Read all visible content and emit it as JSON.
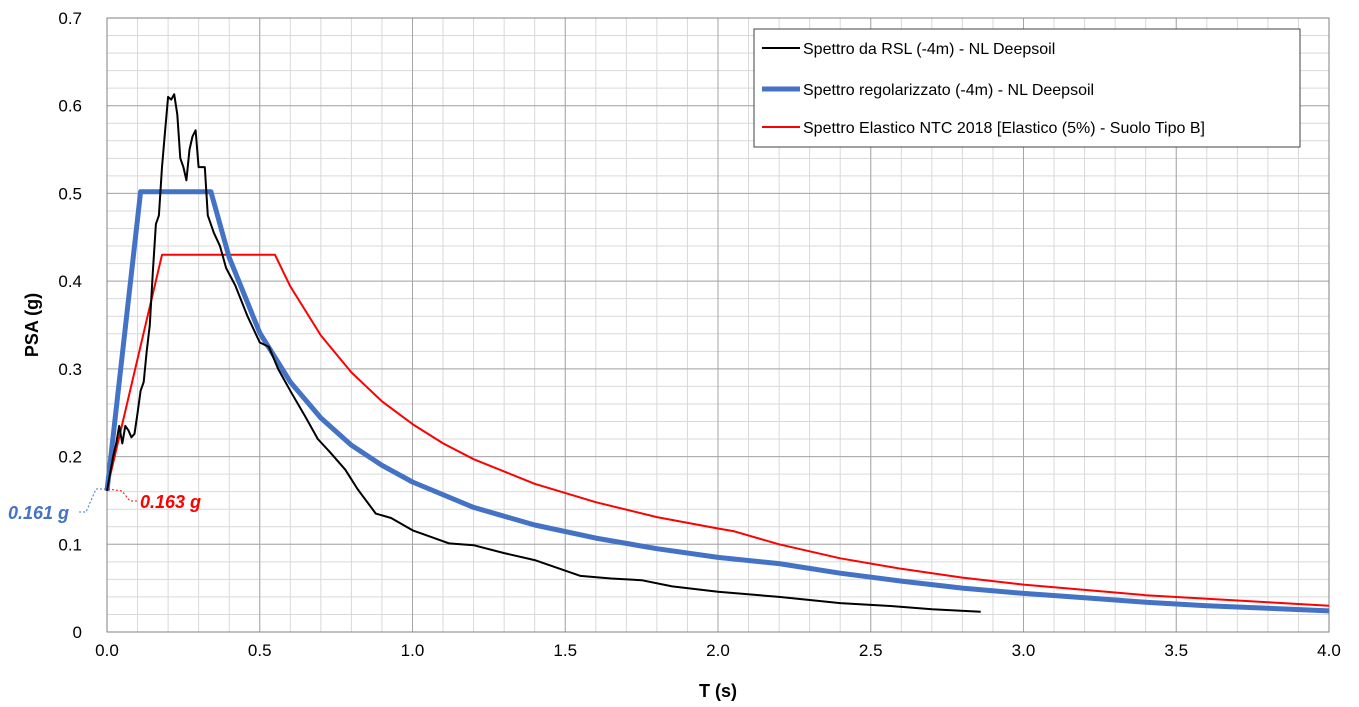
{
  "chart_data": {
    "type": "line",
    "xlabel": "T (s)",
    "ylabel": "PSA (g)",
    "xlim": [
      0,
      4
    ],
    "ylim": [
      0,
      0.7
    ],
    "x_ticks": [
      "0.0",
      "0.5",
      "1.0",
      "1.5",
      "2.0",
      "2.5",
      "3.0",
      "3.5",
      "4.0"
    ],
    "y_ticks": [
      "0",
      "0.1",
      "0.2",
      "0.3",
      "0.4",
      "0.5",
      "0.6",
      "0.7"
    ],
    "grid": true,
    "legend_position": "top-right",
    "series": [
      {
        "name": "Spettro da RSL (-4m) - NL Deepsoil",
        "color": "#000000",
        "points": [
          [
            0,
            0.161
          ],
          [
            0.02,
            0.2
          ],
          [
            0.03,
            0.215
          ],
          [
            0.04,
            0.235
          ],
          [
            0.05,
            0.215
          ],
          [
            0.06,
            0.235
          ],
          [
            0.07,
            0.23
          ],
          [
            0.08,
            0.222
          ],
          [
            0.09,
            0.226
          ],
          [
            0.1,
            0.25
          ],
          [
            0.11,
            0.275
          ],
          [
            0.12,
            0.285
          ],
          [
            0.13,
            0.32
          ],
          [
            0.14,
            0.35
          ],
          [
            0.15,
            0.41
          ],
          [
            0.16,
            0.465
          ],
          [
            0.17,
            0.475
          ],
          [
            0.18,
            0.53
          ],
          [
            0.19,
            0.57
          ],
          [
            0.2,
            0.61
          ],
          [
            0.21,
            0.607
          ],
          [
            0.22,
            0.613
          ],
          [
            0.23,
            0.59
          ],
          [
            0.24,
            0.54
          ],
          [
            0.25,
            0.53
          ],
          [
            0.26,
            0.515
          ],
          [
            0.27,
            0.55
          ],
          [
            0.28,
            0.565
          ],
          [
            0.29,
            0.572
          ],
          [
            0.3,
            0.53
          ],
          [
            0.32,
            0.53
          ],
          [
            0.33,
            0.475
          ],
          [
            0.35,
            0.455
          ],
          [
            0.37,
            0.44
          ],
          [
            0.39,
            0.415
          ],
          [
            0.42,
            0.395
          ],
          [
            0.46,
            0.36
          ],
          [
            0.5,
            0.33
          ],
          [
            0.53,
            0.325
          ],
          [
            0.56,
            0.3
          ],
          [
            0.6,
            0.275
          ],
          [
            0.65,
            0.245
          ],
          [
            0.69,
            0.22
          ],
          [
            0.73,
            0.205
          ],
          [
            0.78,
            0.185
          ],
          [
            0.82,
            0.163
          ],
          [
            0.88,
            0.135
          ],
          [
            0.93,
            0.13
          ],
          [
            1.0,
            0.116
          ],
          [
            1.12,
            0.101
          ],
          [
            1.2,
            0.099
          ],
          [
            1.3,
            0.09
          ],
          [
            1.4,
            0.082
          ],
          [
            1.55,
            0.064
          ],
          [
            1.65,
            0.061
          ],
          [
            1.75,
            0.059
          ],
          [
            1.85,
            0.052
          ],
          [
            2.0,
            0.046
          ],
          [
            2.2,
            0.04
          ],
          [
            2.4,
            0.033
          ],
          [
            2.55,
            0.03
          ],
          [
            2.7,
            0.026
          ],
          [
            2.86,
            0.023
          ]
        ]
      },
      {
        "name": "Spettro regolarizzato (-4m) - NL Deepsoil",
        "color": "#4472C4",
        "points": [
          [
            0,
            0.161
          ],
          [
            0.11,
            0.502
          ],
          [
            0.34,
            0.502
          ],
          [
            0.4,
            0.427
          ],
          [
            0.5,
            0.341
          ],
          [
            0.6,
            0.285
          ],
          [
            0.7,
            0.244
          ],
          [
            0.8,
            0.213
          ],
          [
            0.9,
            0.19
          ],
          [
            1.0,
            0.171
          ],
          [
            1.2,
            0.142
          ],
          [
            1.4,
            0.122
          ],
          [
            1.6,
            0.107
          ],
          [
            1.8,
            0.095
          ],
          [
            2.0,
            0.085
          ],
          [
            2.2,
            0.078
          ],
          [
            2.4,
            0.067
          ],
          [
            2.6,
            0.058
          ],
          [
            2.8,
            0.05
          ],
          [
            3.0,
            0.044
          ],
          [
            3.2,
            0.039
          ],
          [
            3.4,
            0.034
          ],
          [
            3.6,
            0.03
          ],
          [
            3.8,
            0.027
          ],
          [
            4.0,
            0.024
          ]
        ]
      },
      {
        "name": "Spettro Elastico NTC 2018 [Elastico (5%) - Suolo Tipo B]",
        "color": "#FF0000",
        "points": [
          [
            0,
            0.163
          ],
          [
            0.18,
            0.43
          ],
          [
            0.55,
            0.43
          ],
          [
            0.6,
            0.394
          ],
          [
            0.7,
            0.338
          ],
          [
            0.8,
            0.296
          ],
          [
            0.9,
            0.263
          ],
          [
            1.0,
            0.237
          ],
          [
            1.1,
            0.215
          ],
          [
            1.2,
            0.197
          ],
          [
            1.4,
            0.169
          ],
          [
            1.6,
            0.148
          ],
          [
            1.8,
            0.131
          ],
          [
            2.0,
            0.118
          ],
          [
            2.05,
            0.115
          ],
          [
            2.2,
            0.1
          ],
          [
            2.4,
            0.084
          ],
          [
            2.6,
            0.072
          ],
          [
            2.8,
            0.062
          ],
          [
            3.0,
            0.054
          ],
          [
            3.2,
            0.048
          ],
          [
            3.4,
            0.042
          ],
          [
            3.6,
            0.038
          ],
          [
            3.8,
            0.034
          ],
          [
            4.0,
            0.03
          ]
        ]
      }
    ],
    "annotations": [
      {
        "text": "0.161 g",
        "color": "#4472C4"
      },
      {
        "text": "0.163 g",
        "color": "#FF0000"
      }
    ]
  }
}
